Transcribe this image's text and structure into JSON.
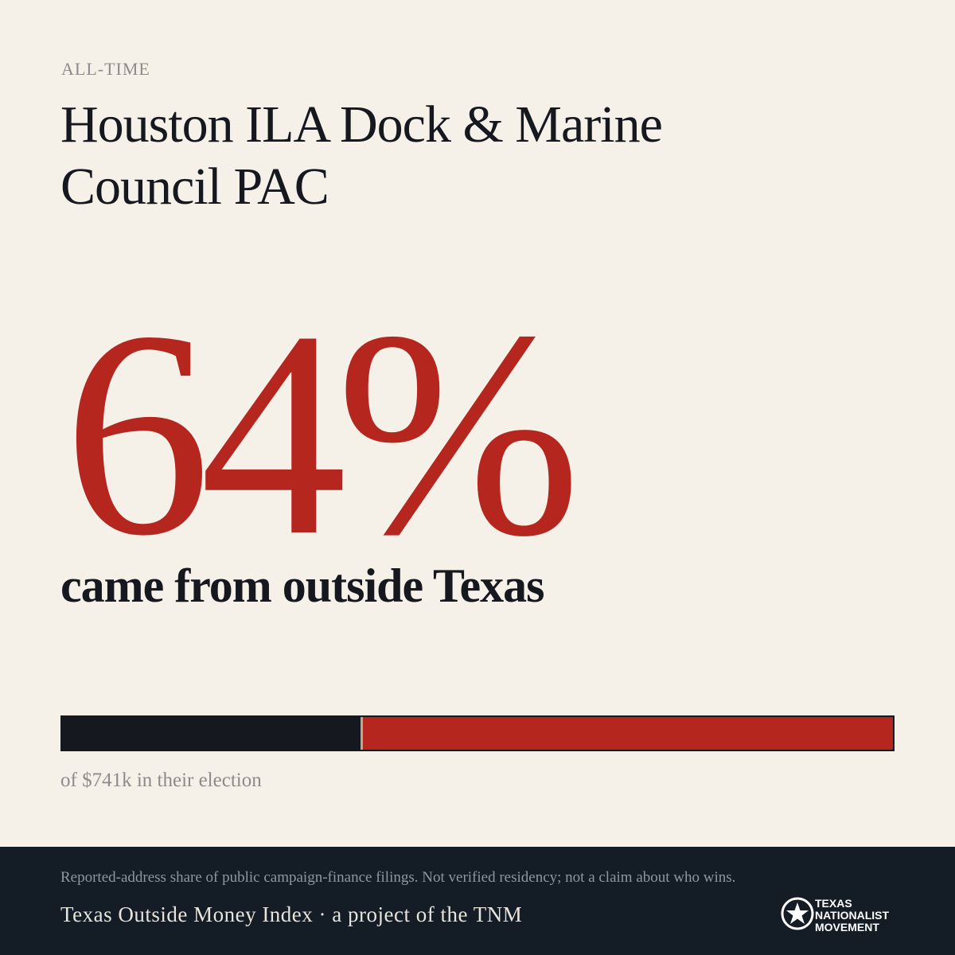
{
  "kicker": "ALL-TIME",
  "title": "Houston ILA Dock & Marine Council PAC",
  "stat": {
    "value": 64,
    "label": "64%",
    "color": "#b5261e"
  },
  "stat_caption": "came from outside Texas",
  "bar": {
    "inside_share": 36,
    "inside_color": "#15181e"
  },
  "bar_caption": "of $741k in their election",
  "footer": {
    "note": "Reported-address share of public campaign-finance filings. Not verified residency; not a claim about who wins.",
    "credit": "Texas Outside Money Index · a project of the TNM",
    "logo": [
      "TEXAS",
      "NATIONALIST",
      "MOVEMENT"
    ]
  }
}
